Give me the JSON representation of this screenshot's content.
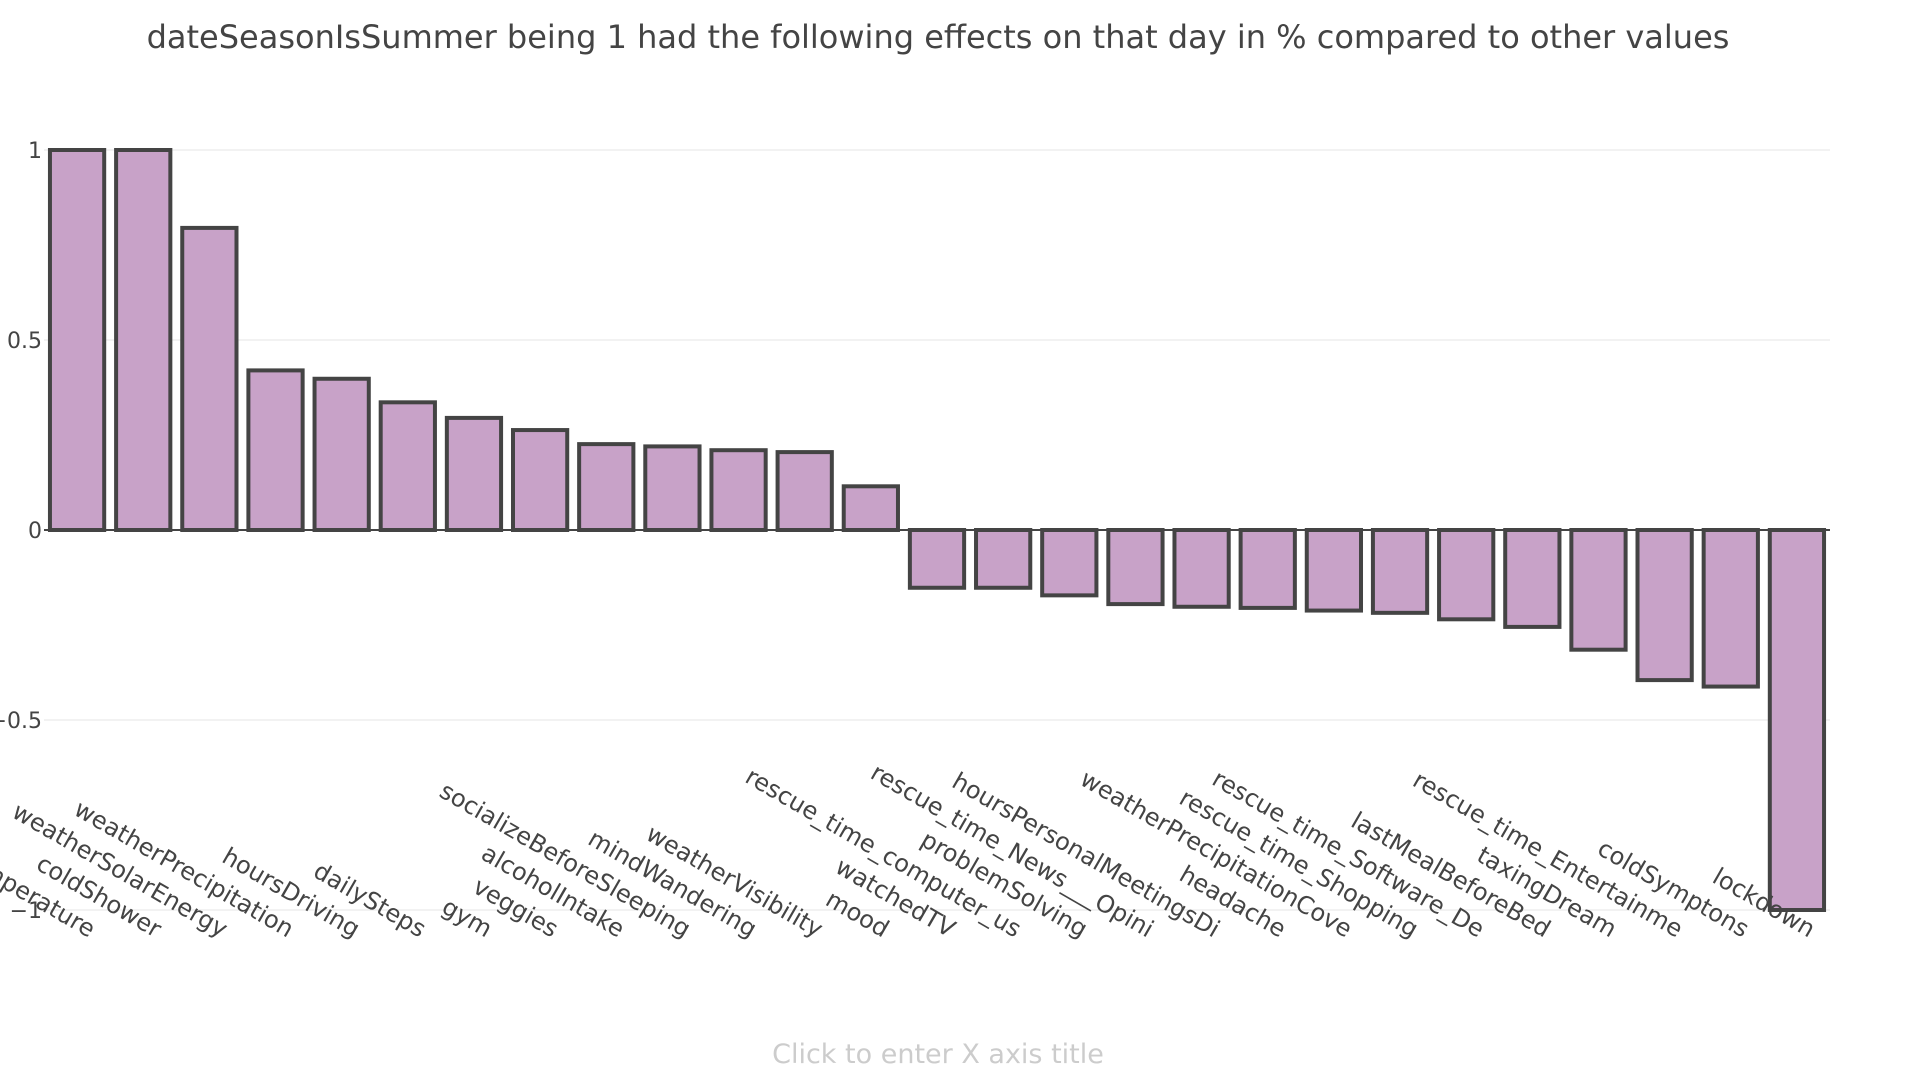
{
  "chart_data": {
    "type": "bar",
    "title": "dateSeasonIsSummer being 1 had the following effects on that day in % compared to other values",
    "xlabel_placeholder": "Click to enter X axis title",
    "ylabel": "",
    "ylim": [
      -1,
      1
    ],
    "yticks": [
      1,
      0.5,
      0,
      -0.5,
      -1
    ],
    "ytick_labels": [
      "1",
      "0.5",
      "0",
      "−0.5",
      "−1"
    ],
    "grid": true,
    "categories": [
      "weatherTemperature",
      "coldShower",
      "weatherSolarEnergy",
      "weatherPrecipitation",
      "hoursDriving",
      "dailySteps",
      "gym",
      "veggies",
      "alcoholIntake",
      "socializeBeforeSleeping",
      "mindWandering",
      "weatherVisibility",
      "mood",
      "watchedTV",
      "rescue_time_computer_us",
      "problemSolving",
      "rescue_time_News___Opini",
      "hoursPersonalMeetingsDi",
      "headache",
      "weatherPrecipitationCove",
      "rescue_time_Shopping",
      "rescue_time_Software_De",
      "lastMealBeforeBed",
      "taxingDream",
      "rescue_time_Entertainme",
      "coldSymptons",
      "lockdown"
    ],
    "values": [
      1.0,
      1.0,
      0.795,
      0.42,
      0.398,
      0.336,
      0.295,
      0.263,
      0.226,
      0.22,
      0.21,
      0.205,
      0.115,
      -0.152,
      -0.152,
      -0.172,
      -0.195,
      -0.202,
      -0.205,
      -0.212,
      -0.218,
      -0.235,
      -0.255,
      -0.315,
      -0.395,
      -0.412,
      -1.0
    ],
    "colors": {
      "bar_fill": "#c8a2c8",
      "bar_stroke": "#444444",
      "grid": "#e6e6e6",
      "zero_line": "#444444",
      "text": "#444444",
      "placeholder": "#cccccc"
    }
  }
}
